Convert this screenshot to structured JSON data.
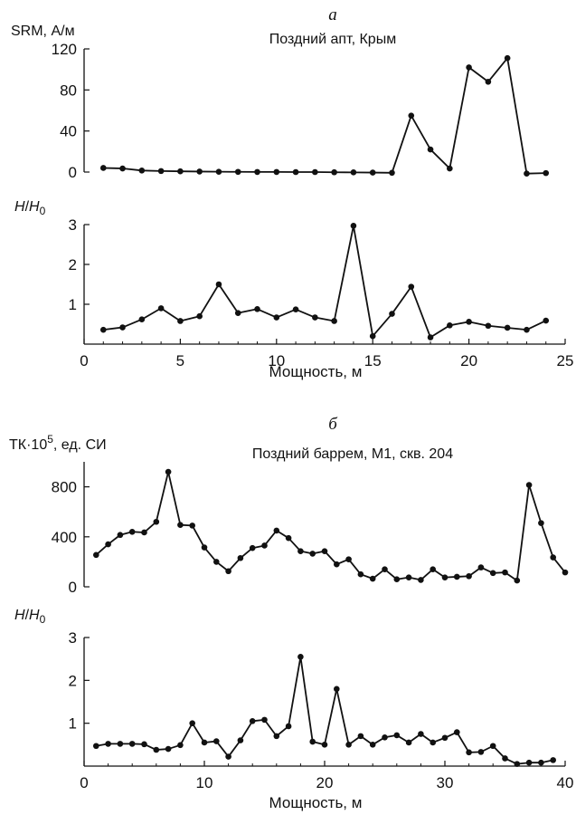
{
  "chart_data": [
    {
      "type": "line",
      "panel_letter": "а",
      "title": "Поздний апт, Крым",
      "xlabel": "Мощность, м",
      "xlim": [
        0,
        25
      ],
      "xticks": [
        0,
        5,
        10,
        15,
        20,
        25
      ],
      "x_grid": false,
      "y_grid": false,
      "subplots": [
        {
          "ylabel": "SRM, А/м",
          "ylim": [
            0,
            120
          ],
          "yticks": [
            0,
            40,
            80,
            120
          ],
          "series": [
            {
              "x": [
                1,
                2,
                3,
                4,
                5,
                6,
                7,
                8,
                9,
                10,
                11,
                12,
                13,
                14,
                15,
                16,
                17,
                18,
                19,
                20,
                21,
                22,
                23,
                24
              ],
              "y": [
                4,
                3.5,
                1.5,
                1,
                0.7,
                0.5,
                0.3,
                0.2,
                0.1,
                0.1,
                0,
                0,
                -0.2,
                -0.3,
                -0.5,
                -0.7,
                55,
                22,
                3.5,
                102,
                88,
                111,
                -1.5,
                -1
              ]
            }
          ]
        },
        {
          "ylabel_main": "H",
          "ylabel_div": "/",
          "ylabel_sub_base": "H",
          "ylabel_sub": "0",
          "ylim": [
            0,
            3
          ],
          "yticks": [
            1,
            2,
            3
          ],
          "series": [
            {
              "x": [
                1,
                2,
                3,
                4,
                5,
                6,
                7,
                8,
                9,
                10,
                11,
                12,
                13,
                14,
                15,
                16,
                17,
                18,
                19,
                20,
                21,
                22,
                23,
                24
              ],
              "y": [
                0.36,
                0.42,
                0.62,
                0.9,
                0.58,
                0.7,
                1.5,
                0.78,
                0.88,
                0.67,
                0.87,
                0.67,
                0.58,
                2.97,
                0.2,
                0.76,
                1.44,
                0.17,
                0.47,
                0.56,
                0.46,
                0.41,
                0.36,
                0.59
              ]
            }
          ]
        }
      ]
    },
    {
      "type": "line",
      "panel_letter": "б",
      "title": "Поздний баррем, М1, скв. 204",
      "xlabel": "Мощность, м",
      "xlim": [
        0,
        40
      ],
      "xticks": [
        0,
        10,
        20,
        30,
        40
      ],
      "x_grid": false,
      "y_grid": false,
      "subplots": [
        {
          "ylabel_main": "ТК·10",
          "ylabel_sup": "5",
          "ylabel_rest": ", ед. СИ",
          "ylim": [
            0,
            1000
          ],
          "yticks": [
            0,
            400,
            800
          ],
          "series": [
            {
              "x": [
                1,
                2,
                3,
                4,
                5,
                6,
                7,
                8,
                9,
                10,
                11,
                12,
                13,
                14,
                15,
                16,
                17,
                18,
                19,
                20,
                21,
                22,
                23,
                24,
                25,
                26,
                27,
                28,
                29,
                30,
                31,
                32,
                33,
                34,
                35,
                36,
                37,
                38,
                39,
                40
              ],
              "y": [
                255,
                340,
                415,
                440,
                435,
                520,
                920,
                495,
                490,
                315,
                200,
                125,
                230,
                310,
                330,
                450,
                390,
                285,
                265,
                285,
                180,
                220,
                100,
                65,
                140,
                60,
                75,
                55,
                140,
                75,
                80,
                85,
                155,
                110,
                115,
                50,
                815,
                510,
                235,
                115
              ]
            }
          ]
        },
        {
          "ylabel_main": "H",
          "ylabel_div": "/",
          "ylabel_sub_base": "H",
          "ylabel_sub": "0",
          "ylim": [
            0,
            3
          ],
          "yticks": [
            1,
            2,
            3
          ],
          "series": [
            {
              "x": [
                1,
                2,
                3,
                4,
                5,
                6,
                7,
                8,
                9,
                10,
                11,
                12,
                13,
                14,
                15,
                16,
                17,
                18,
                19,
                20,
                21,
                22,
                23,
                24,
                25,
                26,
                27,
                28,
                29,
                30,
                31,
                32,
                33,
                34,
                35,
                36,
                37,
                38,
                39,
                40
              ],
              "y": [
                0.47,
                0.52,
                0.52,
                0.52,
                0.51,
                0.38,
                0.4,
                0.49,
                1.0,
                0.55,
                0.58,
                0.22,
                0.6,
                1.05,
                1.08,
                0.7,
                0.93,
                2.55,
                0.57,
                0.5,
                1.8,
                0.5,
                0.7,
                0.5,
                0.67,
                0.72,
                0.55,
                0.75,
                0.55,
                0.66,
                0.79,
                0.32,
                0.33,
                0.47,
                0.18,
                0.05,
                0.08,
                0.08,
                0.14,
                null
              ]
            }
          ]
        }
      ]
    }
  ]
}
